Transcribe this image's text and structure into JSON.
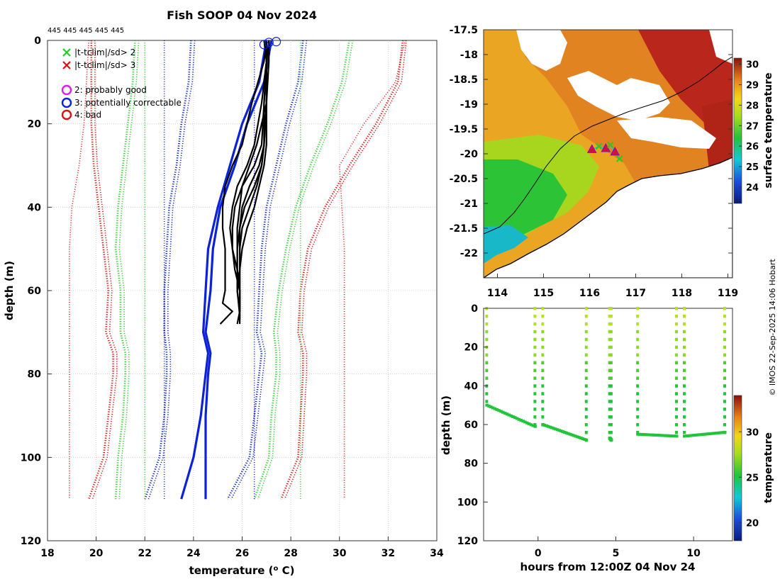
{
  "title": "Fish SOOP 04 Nov 2024",
  "sample_counts": "445 445 445 445 445",
  "credit": "© IMOS 22-Sep-2025 14:06 Hobart",
  "colors": {
    "profile": "#000000",
    "clim_blue": "#0b22d6",
    "clim_green": "#33cc33",
    "clim_red": "#dd1111",
    "bg": "#ffffff"
  },
  "chart_data": [
    {
      "type": "line",
      "name": "profile-panel",
      "xlabel": "temperature (",
      "xlabel_sup": "o",
      "xlabel_end": " C)",
      "ylabel": "depth (m)",
      "xlim": [
        18,
        34
      ],
      "ylim": [
        0,
        120
      ],
      "xticks": [
        "18",
        "20",
        "22",
        "24",
        "26",
        "28",
        "30",
        "32",
        "34"
      ],
      "yticks": [
        "0",
        "20",
        "40",
        "60",
        "80",
        "100",
        "120"
      ],
      "legend": [
        {
          "label": "|t-tclim|/sd> 2",
          "marker": "x",
          "color": "#22cc22"
        },
        {
          "label": "|t-tclim|/sd> 3",
          "marker": "x",
          "color": "#dd1111"
        },
        {
          "label": "2: probably good",
          "marker": "o",
          "color": "#dd22dd"
        },
        {
          "label": "3: potentially correctable",
          "marker": "o",
          "color": "#0b22d6"
        },
        {
          "label": "4: bad",
          "marker": "o",
          "color": "#dd1111"
        }
      ],
      "climatology": [
        {
          "name": "mean",
          "color": "#0b22d6",
          "style": "solid",
          "pairs": [
            {
              "depth": [
                0,
                10,
                20,
                30,
                40,
                50,
                60,
                70,
                75,
                80,
                90,
                100,
                110
              ],
              "t": [
                27.0,
                26.7,
                26.0,
                25.5,
                25.0,
                24.6,
                24.5,
                24.4,
                24.6,
                24.5,
                24.3,
                24.0,
                23.5
              ]
            },
            {
              "depth": [
                0,
                10,
                20,
                30,
                40,
                50,
                60,
                70,
                75,
                80,
                90,
                100,
                110
              ],
              "t": [
                27.2,
                26.9,
                26.2,
                25.7,
                25.1,
                24.8,
                24.7,
                24.5,
                24.7,
                24.6,
                24.5,
                24.5,
                24.5
              ]
            }
          ]
        },
        {
          "name": "1sd",
          "color": "#0b22d6",
          "style": "dotted",
          "pairs": [
            {
              "depth": [
                0,
                10,
                20,
                30,
                40,
                50,
                60,
                70,
                75,
                80,
                90,
                100,
                110
              ],
              "t": [
                23.9,
                23.8,
                23.5,
                23.3,
                23.0,
                22.9,
                22.8,
                22.8,
                22.9,
                22.9,
                22.8,
                22.6,
                22.0
              ]
            },
            {
              "depth": [
                0,
                10,
                20,
                30,
                40,
                50,
                60,
                70,
                75,
                80,
                90,
                100,
                110
              ],
              "t": [
                28.5,
                28.3,
                27.8,
                27.4,
                27.0,
                26.8,
                26.7,
                26.6,
                26.8,
                26.7,
                26.5,
                26.3,
                25.4
              ]
            }
          ]
        },
        {
          "name": "2sd",
          "color": "#33cc33",
          "style": "dotted",
          "pairs": [
            {
              "depth": [
                0,
                10,
                20,
                30,
                40,
                50,
                60,
                70,
                75,
                80,
                90,
                100,
                110
              ],
              "t": [
                21.6,
                21.5,
                21.3,
                21.1,
                20.9,
                20.8,
                21.0,
                21.0,
                21.2,
                21.2,
                21.1,
                20.9,
                20.8
              ]
            },
            {
              "depth": [
                0,
                10,
                20,
                30,
                40,
                50,
                60,
                70,
                75,
                80,
                90,
                100,
                110
              ],
              "t": [
                30.4,
                30.1,
                29.5,
                28.8,
                28.2,
                27.8,
                27.5,
                27.3,
                27.4,
                27.4,
                27.2,
                27.1,
                26.5
              ]
            }
          ]
        },
        {
          "name": "3sd",
          "color": "#dd1111",
          "style": "dotted",
          "pairs": [
            {
              "depth": [
                0,
                10,
                20,
                30,
                40,
                50,
                60,
                70,
                75,
                80,
                90,
                100,
                110
              ],
              "t": [
                19.8,
                19.8,
                19.8,
                19.9,
                20.1,
                20.3,
                20.5,
                20.4,
                20.7,
                20.7,
                20.5,
                20.3,
                19.7
              ]
            },
            {
              "depth": [
                0,
                10,
                20,
                30,
                40,
                50,
                60,
                70,
                75,
                80,
                90,
                100,
                110
              ],
              "t": [
                32.6,
                32.4,
                31.5,
                30.4,
                29.4,
                28.7,
                28.4,
                28.3,
                28.5,
                28.5,
                28.4,
                28.3,
                27.6
              ]
            }
          ]
        },
        {
          "name": "range",
          "color": "#dd1111",
          "style": "sparse",
          "pairs": [
            {
              "depth": [
                0,
                10,
                20,
                30,
                40,
                50,
                110
              ],
              "t": [
                19.7,
                19.6,
                19.5,
                19.3,
                19.0,
                18.9,
                18.9
              ]
            },
            {
              "depth": [
                0,
                10,
                20,
                30,
                40,
                50,
                110
              ],
              "t": [
                32.7,
                32.3,
                31.0,
                30.0,
                30.1,
                30.2,
                30.2
              ]
            }
          ]
        },
        {
          "name": "range-green",
          "color": "#33cc33",
          "style": "sparse",
          "pairs": [
            {
              "depth": [
                0,
                110
              ],
              "t": [
                22.0,
                22.0
              ]
            },
            {
              "depth": [
                0,
                110
              ],
              "t": [
                28.4,
                28.4
              ]
            }
          ]
        },
        {
          "name": "range-blue",
          "color": "#0b22d6",
          "style": "sparse",
          "pairs": [
            {
              "depth": [
                0,
                110
              ],
              "t": [
                22.8,
                22.8
              ]
            },
            {
              "depth": [
                0,
                110
              ],
              "t": [
                26.5,
                26.5
              ]
            }
          ]
        }
      ],
      "profiles": [
        {
          "depth": [
            0,
            5,
            15,
            25,
            30,
            35,
            40,
            45,
            50,
            55,
            60,
            65,
            68
          ],
          "t": [
            27.0,
            27.0,
            26.9,
            26.8,
            26.5,
            26.0,
            25.9,
            25.8,
            25.8,
            25.8,
            25.8,
            25.9,
            25.8
          ]
        },
        {
          "depth": [
            0,
            5,
            15,
            25,
            30,
            35,
            40,
            45,
            50,
            55,
            60,
            65,
            68
          ],
          "t": [
            27.1,
            27.0,
            27.0,
            26.9,
            26.7,
            26.3,
            26.0,
            25.9,
            25.9,
            25.9,
            25.9,
            25.9,
            25.9
          ]
        },
        {
          "depth": [
            0,
            5,
            15,
            25,
            30,
            35,
            40,
            45,
            50,
            55,
            60,
            63,
            65,
            68
          ],
          "t": [
            27.0,
            26.9,
            26.4,
            26.0,
            25.6,
            25.3,
            25.2,
            25.2,
            25.3,
            25.3,
            25.3,
            25.2,
            25.6,
            25.1
          ]
        },
        {
          "depth": [
            0,
            5,
            15,
            25,
            30,
            35,
            40,
            45,
            50,
            55,
            60,
            64
          ],
          "t": [
            27.0,
            27.0,
            26.8,
            26.5,
            26.2,
            25.8,
            25.6,
            25.5,
            25.6,
            25.8,
            25.9,
            25.9
          ]
        },
        {
          "depth": [
            0,
            5,
            15,
            25,
            30,
            35,
            40,
            45,
            50,
            55,
            60,
            65
          ],
          "t": [
            27.0,
            27.0,
            27.0,
            26.9,
            26.8,
            26.5,
            26.1,
            25.9,
            25.8,
            25.8,
            25.9,
            25.9
          ]
        },
        {
          "depth": [
            0,
            5,
            15,
            25,
            30,
            35,
            40,
            45,
            50,
            55,
            60,
            65
          ],
          "t": [
            27.1,
            27.1,
            27.0,
            26.6,
            26.3,
            26.0,
            25.7,
            25.6,
            25.6,
            25.7,
            25.9,
            25.9
          ]
        },
        {
          "depth": [
            0,
            5,
            15,
            25,
            30,
            35,
            40,
            45,
            50,
            55,
            60,
            66
          ],
          "t": [
            27.0,
            27.0,
            26.9,
            26.9,
            26.8,
            26.6,
            26.3,
            26.0,
            25.9,
            25.9,
            25.8,
            25.9
          ]
        },
        {
          "depth": [
            0,
            5,
            15,
            25,
            30,
            35,
            40,
            45,
            50,
            55,
            60,
            67
          ],
          "t": [
            26.9,
            27.0,
            27.0,
            27.0,
            26.9,
            26.7,
            26.5,
            26.2,
            26.0,
            25.9,
            25.9,
            25.9
          ]
        }
      ],
      "flag_markers": [
        {
          "t": 26.9,
          "depth": 1,
          "color": "#0b22d6"
        },
        {
          "t": 27.1,
          "depth": 0.5,
          "color": "#0b22d6"
        },
        {
          "t": 27.4,
          "depth": 0.3,
          "color": "#0b22d6"
        }
      ]
    },
    {
      "type": "heatmap",
      "name": "map-panel",
      "xlim": [
        113.7,
        119.1
      ],
      "ylim": [
        -22.5,
        -17.5
      ],
      "xticks": [
        "114",
        "115",
        "116",
        "117",
        "118",
        "119"
      ],
      "yticks": [
        "-17.5",
        "-18",
        "-18.5",
        "-19",
        "-19.5",
        "-20",
        "-20.5",
        "-21",
        "-21.5",
        "-22"
      ],
      "colorbar_label": "surface temperature",
      "colorbar_ticks": [
        "24",
        "25",
        "26",
        "27",
        "28",
        "29",
        "30"
      ],
      "colorbar_range": [
        23.2,
        30.3
      ],
      "track": [
        {
          "lon": 116.05,
          "lat": -19.92
        },
        {
          "lon": 116.2,
          "lat": -19.85
        },
        {
          "lon": 116.35,
          "lat": -19.9
        },
        {
          "lon": 116.45,
          "lat": -19.82
        },
        {
          "lon": 116.55,
          "lat": -19.97
        },
        {
          "lon": 116.65,
          "lat": -20.1
        }
      ]
    },
    {
      "type": "scatter",
      "name": "section-panel",
      "xlabel": "hours from 12:00Z 04 Nov 24",
      "ylabel": "depth (m)",
      "xlim": [
        -3.5,
        12.5
      ],
      "ylim": [
        0,
        120
      ],
      "xticks": [
        "0",
        "5",
        "10"
      ],
      "yticks": [
        "0",
        "20",
        "40",
        "60",
        "80",
        "100",
        "120"
      ],
      "colorbar_label": "temperature",
      "colorbar_ticks": [
        "20",
        "25",
        "30"
      ],
      "colorbar_range": [
        18,
        34
      ],
      "casts": [
        {
          "start": -3.3,
          "end": -0.2,
          "d0": 50,
          "d1": 61
        },
        {
          "start": 0.3,
          "end": 3.1,
          "d0": 60,
          "d1": 68
        },
        {
          "start": 4.6,
          "end": 4.7,
          "d0": 67,
          "d1": 68
        },
        {
          "start": 6.4,
          "end": 8.9,
          "d0": 65,
          "d1": 66
        },
        {
          "start": 9.4,
          "end": 12.0,
          "d0": 66,
          "d1": 64
        }
      ],
      "cast_times": [
        -3.3,
        -0.2,
        0.3,
        3.1,
        4.6,
        4.7,
        6.4,
        8.9,
        9.4,
        12.0
      ]
    }
  ]
}
